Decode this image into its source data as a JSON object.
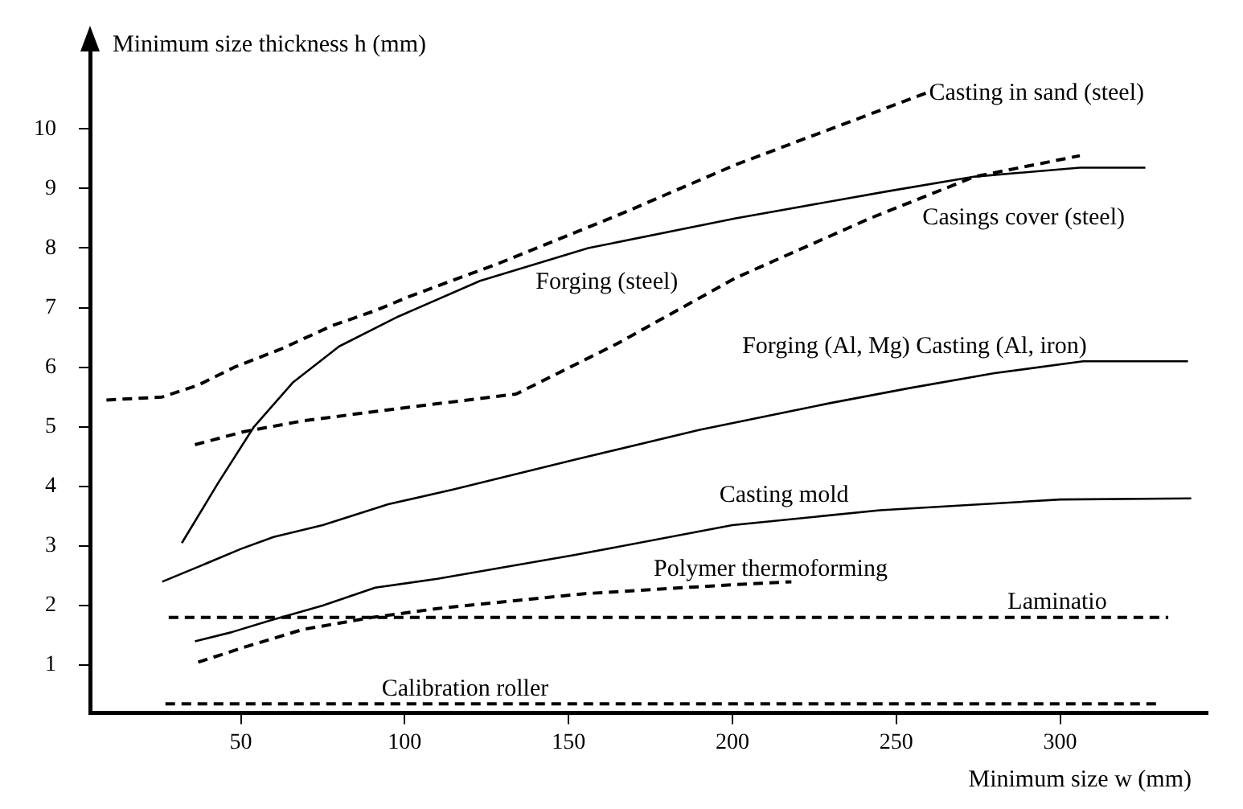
{
  "chart_data": {
    "type": "line",
    "xlabel": "Minimum size w (mm)",
    "ylabel": "Minimum size thickness h (mm)",
    "xlim": [
      4,
      345
    ],
    "xticks": [
      50,
      100,
      150,
      200,
      250,
      300
    ],
    "ylim": [
      0.2,
      11.3
    ],
    "yticks": [
      1,
      2,
      3,
      4,
      5,
      6,
      7,
      8,
      9,
      10
    ],
    "grid": false,
    "legend": false,
    "marker": "none",
    "series": [
      {
        "name": "Casting in sand (steel)",
        "color": "#000000",
        "line_style": "dashed",
        "x": [
          9,
          26,
          37,
          48,
          62,
          78,
          91,
          102,
          129,
          165,
          201,
          230,
          259
        ],
        "values": [
          5.45,
          5.5,
          5.7,
          6.0,
          6.3,
          6.7,
          6.95,
          7.2,
          7.75,
          8.55,
          9.4,
          10.0,
          10.6
        ]
      },
      {
        "name": "Forging (steel)",
        "color": "#000000",
        "line_style": "solid",
        "x": [
          32,
          43,
          54,
          66,
          80,
          98,
          123,
          156,
          201,
          247,
          274,
          306,
          326
        ],
        "values": [
          3.05,
          4.05,
          5.0,
          5.75,
          6.35,
          6.85,
          7.45,
          8.0,
          8.5,
          8.95,
          9.2,
          9.35,
          9.35
        ]
      },
      {
        "name": "Casings cover (steel)",
        "color": "#000000",
        "line_style": "dashed",
        "x": [
          36,
          51,
          69,
          97,
          134,
          165,
          201,
          242,
          274,
          306
        ],
        "values": [
          4.7,
          4.92,
          5.1,
          5.3,
          5.55,
          6.4,
          7.5,
          8.5,
          9.2,
          9.55
        ]
      },
      {
        "name": "Forging (Al, Mg) Casting (Al, iron)",
        "color": "#000000",
        "line_style": "solid",
        "x": [
          26,
          37,
          50,
          60,
          75,
          95,
          115,
          152,
          190,
          230,
          254,
          280,
          307,
          339
        ],
        "values": [
          2.4,
          2.65,
          2.95,
          3.15,
          3.35,
          3.7,
          3.95,
          4.45,
          4.95,
          5.4,
          5.65,
          5.9,
          6.1,
          6.1
        ]
      },
      {
        "name": "Casting mold",
        "color": "#000000",
        "line_style": "solid",
        "x": [
          36,
          47,
          59,
          75,
          91,
          110,
          152,
          200,
          245,
          300,
          340
        ],
        "values": [
          1.4,
          1.55,
          1.75,
          2.0,
          2.3,
          2.45,
          2.85,
          3.35,
          3.6,
          3.78,
          3.8
        ]
      },
      {
        "name": "Polymer thermoforming",
        "color": "#000000",
        "line_style": "dashed",
        "x": [
          37,
          51,
          69,
          90,
          110,
          155,
          200,
          218
        ],
        "values": [
          1.05,
          1.3,
          1.6,
          1.8,
          1.95,
          2.2,
          2.35,
          2.4
        ]
      },
      {
        "name": "Laminatio",
        "color": "#000000",
        "line_style": "dashed",
        "x": [
          28,
          333
        ],
        "values": [
          1.8,
          1.8
        ]
      },
      {
        "name": "Calibration roller",
        "color": "#000000",
        "line_style": "dashed",
        "x": [
          27,
          330
        ],
        "values": [
          0.35,
          0.35
        ]
      }
    ]
  }
}
